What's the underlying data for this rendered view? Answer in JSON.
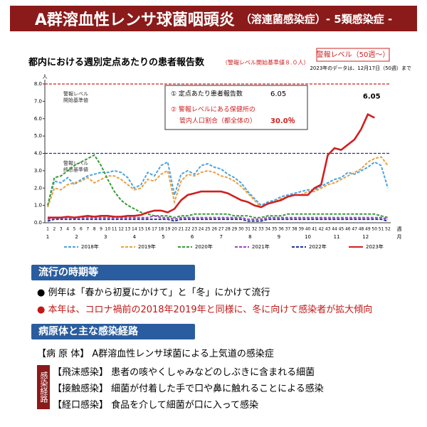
{
  "header": {
    "title": "A群溶血性レンサ球菌咽頭炎",
    "title_sub": "（溶連菌感染症）- 5類感染症 -"
  },
  "chart_data": {
    "type": "line",
    "title": "都内における週別定点あたりの患者報告数",
    "title_note": "（警報レベル開始基準値８.０人）",
    "alert_box": "警報レベル（50週〜）",
    "data_note": "2023年のデータは、12月17日（50週）まで",
    "y_unit": "人",
    "x_unit": "週",
    "month_unit": "月",
    "categories": [
      1,
      2,
      3,
      4,
      5,
      6,
      7,
      8,
      9,
      10,
      11,
      12,
      13,
      14,
      15,
      16,
      17,
      18,
      19,
      20,
      21,
      22,
      23,
      24,
      25,
      26,
      27,
      28,
      29,
      30,
      31,
      32,
      33,
      34,
      35,
      36,
      37,
      38,
      39,
      40,
      41,
      42,
      43,
      44,
      45,
      46,
      47,
      48,
      49,
      50,
      51,
      52
    ],
    "months": [
      1,
      2,
      3,
      4,
      5,
      6,
      7,
      8,
      9,
      10,
      11,
      12
    ],
    "ylim": [
      0,
      8
    ],
    "yticks": [
      {
        "value": 0,
        "label": "0.0"
      },
      {
        "value": 1,
        "label": "1.0"
      },
      {
        "value": 2,
        "label": "2.0"
      },
      {
        "value": 3,
        "label": "3.0"
      },
      {
        "value": 4,
        "label": "4.0"
      },
      {
        "value": 5,
        "label": "5.0"
      },
      {
        "value": 6,
        "label": "6.0"
      },
      {
        "value": 7,
        "label": "7.0"
      },
      {
        "value": 8,
        "label": "8.0"
      }
    ],
    "reference_lines": [
      {
        "value": 8,
        "color": "#d02020",
        "lines": [
          "警報レベル",
          "開始基準値"
        ]
      },
      {
        "value": 4,
        "color": "#2030a0",
        "lines": [
          "警報レベル",
          "終息基準値"
        ]
      }
    ],
    "annotation": [
      {
        "label": "① 定点あたり患者報告数",
        "value": "6.05"
      },
      {
        "label": "② 警報レベルにある保健所の",
        "label2": "管内人口割合（都全体の）",
        "value": "30.0％"
      }
    ],
    "series": [
      {
        "name": "2018年",
        "color": "#4aa3df",
        "dash": true,
        "values": [
          1.0,
          2.4,
          2.3,
          2.6,
          2.2,
          2.5,
          2.7,
          2.8,
          2.9,
          2.9,
          3.0,
          2.9,
          2.6,
          2.0,
          2.2,
          2.9,
          2.7,
          3.3,
          3.5,
          1.6,
          2.8,
          3.0,
          2.8,
          3.3,
          3.4,
          3.2,
          3.1,
          2.8,
          2.6,
          2.3,
          1.8,
          1.4,
          1.0,
          1.2,
          1.3,
          1.5,
          1.6,
          1.7,
          1.8,
          1.9,
          1.9,
          2.1,
          2.3,
          2.5,
          2.6,
          2.9,
          2.8,
          3.0,
          3.2,
          3.5,
          3.3,
          2.0
        ]
      },
      {
        "name": "2019年",
        "color": "#e8a040",
        "dash": true,
        "values": [
          0.9,
          2.0,
          1.9,
          2.2,
          2.3,
          2.4,
          2.6,
          2.3,
          2.5,
          2.7,
          2.7,
          2.5,
          2.2,
          1.9,
          2.0,
          2.5,
          2.4,
          2.8,
          3.0,
          1.2,
          2.4,
          2.8,
          2.7,
          2.9,
          3.0,
          2.9,
          2.7,
          2.6,
          2.4,
          2.1,
          1.7,
          1.3,
          0.9,
          1.1,
          1.2,
          1.4,
          1.5,
          1.6,
          1.6,
          1.8,
          1.8,
          2.0,
          2.2,
          2.3,
          2.5,
          2.7,
          2.9,
          3.1,
          3.5,
          3.7,
          3.8,
          3.3
        ]
      },
      {
        "name": "2020年",
        "color": "#3a9a3a",
        "dash": true,
        "values": [
          1.0,
          2.6,
          2.7,
          3.0,
          3.3,
          3.5,
          3.7,
          3.9,
          3.3,
          2.5,
          1.8,
          1.3,
          1.0,
          0.8,
          0.6,
          0.5,
          0.4,
          0.4,
          0.4,
          0.3,
          0.4,
          0.4,
          0.5,
          0.5,
          0.5,
          0.5,
          0.5,
          0.5,
          0.4,
          0.4,
          0.4,
          0.3,
          0.3,
          0.4,
          0.4,
          0.4,
          0.5,
          0.5,
          0.5,
          0.5,
          0.5,
          0.5,
          0.5,
          0.5,
          0.5,
          0.5,
          0.5,
          0.5,
          0.5,
          0.5,
          0.4,
          0.3
        ]
      },
      {
        "name": "2021年",
        "color": "#a040c0",
        "dash": true,
        "values": [
          0.2,
          0.3,
          0.3,
          0.3,
          0.3,
          0.3,
          0.3,
          0.3,
          0.3,
          0.3,
          0.3,
          0.3,
          0.3,
          0.3,
          0.3,
          0.3,
          0.4,
          0.3,
          0.3,
          0.2,
          0.3,
          0.3,
          0.3,
          0.3,
          0.3,
          0.3,
          0.3,
          0.3,
          0.3,
          0.3,
          0.2,
          0.2,
          0.2,
          0.3,
          0.3,
          0.3,
          0.3,
          0.3,
          0.3,
          0.3,
          0.3,
          0.3,
          0.3,
          0.3,
          0.3,
          0.3,
          0.3,
          0.3,
          0.3,
          0.3,
          0.3,
          0.2
        ]
      },
      {
        "name": "2022年",
        "color": "#2030a0",
        "dash": true,
        "values": [
          0.1,
          0.2,
          0.2,
          0.2,
          0.2,
          0.2,
          0.2,
          0.2,
          0.2,
          0.2,
          0.2,
          0.2,
          0.2,
          0.2,
          0.2,
          0.2,
          0.2,
          0.2,
          0.2,
          0.1,
          0.2,
          0.2,
          0.2,
          0.2,
          0.2,
          0.2,
          0.2,
          0.2,
          0.2,
          0.2,
          0.1,
          0.1,
          0.1,
          0.2,
          0.2,
          0.2,
          0.2,
          0.2,
          0.2,
          0.2,
          0.2,
          0.2,
          0.2,
          0.2,
          0.2,
          0.2,
          0.2,
          0.2,
          0.2,
          0.2,
          0.2,
          0.1
        ]
      },
      {
        "name": "2023年",
        "color": "#d02020",
        "dash": false,
        "values": [
          0.3,
          0.3,
          0.3,
          0.35,
          0.3,
          0.35,
          0.4,
          0.35,
          0.4,
          0.4,
          0.35,
          0.35,
          0.4,
          0.4,
          0.45,
          0.6,
          0.7,
          0.7,
          0.6,
          0.8,
          1.3,
          1.6,
          1.7,
          1.8,
          1.8,
          1.8,
          1.8,
          1.7,
          1.5,
          1.3,
          1.2,
          1.0,
          0.9,
          1.1,
          1.2,
          1.3,
          1.5,
          1.6,
          1.6,
          1.6,
          2.0,
          2.2,
          3.9,
          4.3,
          4.2,
          4.5,
          4.8,
          5.4,
          6.25,
          6.05,
          null,
          null
        ],
        "value_labels": [
          null,
          null,
          null,
          null,
          null,
          null,
          null,
          null,
          null,
          null,
          null,
          null,
          null,
          null,
          null,
          null,
          null,
          null,
          null,
          null,
          null,
          null,
          null,
          null,
          null,
          null,
          null,
          null,
          null,
          null,
          null,
          null,
          null,
          null,
          null,
          null,
          null,
          null,
          null,
          null,
          null,
          null,
          null,
          null,
          null,
          null,
          null,
          null,
          null,
          "6.05",
          null,
          null
        ]
      }
    ]
  },
  "season": {
    "heading": "流行の時期等",
    "items": [
      "● 例年は「春から初夏にかけて」と「冬」にかけて流行",
      "● 本年は、コロナ禍前の2018年2019年と同様に、冬に向けて感染者が拡大傾向"
    ]
  },
  "pathogen": {
    "heading": "病原体と主な感染経路",
    "main_key": "【病 原 体】",
    "main_text": "A群溶血性レンサ球菌による上気道の感染症",
    "route_label": "感染経路",
    "routes": [
      {
        "key": "【飛沫感染】",
        "text": "患者の咳やくしゃみなどのしぶきに含まれる細菌"
      },
      {
        "key": "【接触感染】",
        "text": "細菌が付着した手で口や鼻に触れることによる感染"
      },
      {
        "key": "【経口感染】",
        "text": "食品を介して細菌が口に入って感染"
      }
    ]
  }
}
